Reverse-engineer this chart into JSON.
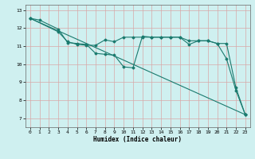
{
  "line1": {
    "x": [
      0,
      1,
      3,
      4,
      5,
      6,
      7,
      8,
      9,
      10,
      11,
      12,
      13,
      14,
      15,
      16,
      17,
      18,
      19,
      20,
      21,
      22,
      23
    ],
    "y": [
      12.55,
      12.45,
      11.95,
      11.2,
      11.15,
      11.1,
      10.6,
      10.55,
      10.5,
      9.85,
      9.8,
      11.55,
      11.5,
      11.5,
      11.5,
      11.5,
      11.1,
      11.3,
      11.3,
      11.15,
      10.3,
      8.55,
      7.2
    ]
  },
  "line2": {
    "x": [
      0,
      3,
      4,
      5,
      6,
      7,
      8,
      9,
      10,
      11,
      12,
      13,
      14,
      15,
      16,
      17,
      18,
      19,
      20,
      21,
      22,
      23
    ],
    "y": [
      12.55,
      11.8,
      11.25,
      11.1,
      11.05,
      11.05,
      11.35,
      11.25,
      11.5,
      11.5,
      11.5,
      11.5,
      11.5,
      11.5,
      11.5,
      11.3,
      11.3,
      11.3,
      11.15,
      11.15,
      8.7,
      7.2
    ]
  },
  "line3": {
    "x": [
      0,
      23
    ],
    "y": [
      12.55,
      7.2
    ]
  },
  "xlabel": "Humidex (Indice chaleur)",
  "xlim": [
    -0.5,
    23.5
  ],
  "ylim": [
    6.5,
    13.3
  ],
  "yticks": [
    7,
    8,
    9,
    10,
    11,
    12,
    13
  ],
  "xticks": [
    0,
    1,
    2,
    3,
    4,
    5,
    6,
    7,
    8,
    9,
    10,
    11,
    12,
    13,
    14,
    15,
    16,
    17,
    18,
    19,
    20,
    21,
    22,
    23
  ],
  "line_color": "#1a7a6e",
  "bg_color": "#cff0f0",
  "grid_color": "#d9a8a8",
  "marker": "D",
  "marker_size": 1.5,
  "line_width": 0.8
}
